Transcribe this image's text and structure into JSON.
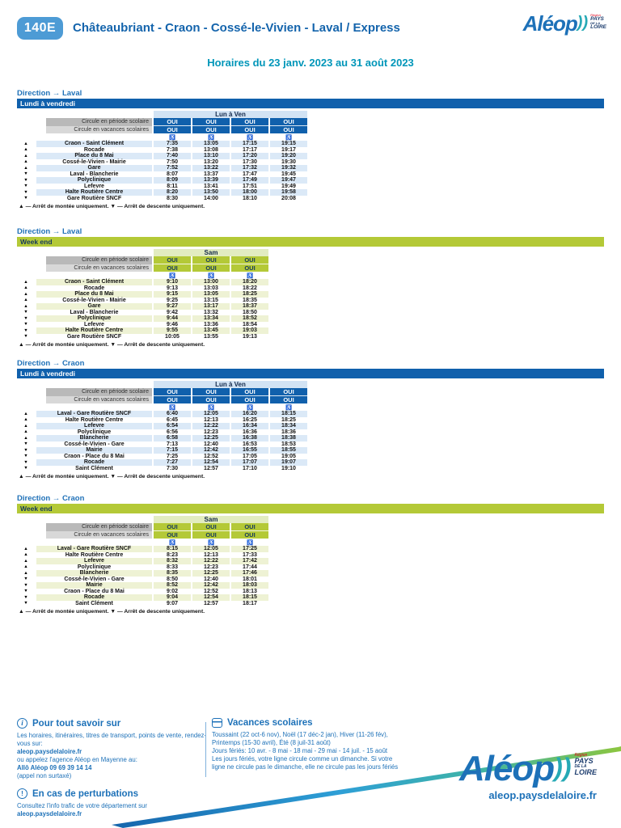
{
  "page": {
    "badge": "140E",
    "title": "Châteaubriant - Craon - Cossé-le-Vivien - Laval / Express",
    "subtitle": "Horaires du 23 janv. 2023 au 31 août 2023",
    "brand": {
      "name": "Aléop",
      "chevrons": "))",
      "region_small": "Région",
      "region_lines": [
        "PAYS",
        "DE LA",
        "LOIRE"
      ],
      "url": "aleop.paysdelaloire.fr"
    },
    "colors": {
      "dark_blue": "#1060ac",
      "badge_blue": "#4d9bd5",
      "teal": "#0096b9",
      "green": "#b4c937",
      "link_blue": "#1d71b8"
    }
  },
  "table_labels": {
    "periode": "Circule en période scolaire",
    "vacances": "Circule en vacances scolaires",
    "wheelchair_icon": "♿",
    "footnote": "▲ — Arrêt de montée uniquement. ▼ — Arrêt de descente uniquement."
  },
  "tables": [
    {
      "direction": "Direction → Laval",
      "day_band": "Lundi à vendredi",
      "theme": "blue",
      "day_header": "Lun à Ven",
      "periode": [
        "OUI",
        "OUI",
        "OUI",
        "OUI"
      ],
      "vacances": [
        "OUI",
        "OUI",
        "OUI",
        "OUI"
      ],
      "stops": [
        {
          "marker": "▲",
          "name": "Craon - Saint Clément",
          "times": [
            "7:35",
            "13:05",
            "17:15",
            "19:15"
          ]
        },
        {
          "marker": "▲",
          "name": "Rocade",
          "times": [
            "7:38",
            "13:08",
            "17:17",
            "19:17"
          ]
        },
        {
          "marker": "▲",
          "name": "Place du 8 Mai",
          "times": [
            "7:40",
            "13:10",
            "17:20",
            "19:20"
          ]
        },
        {
          "marker": "▲",
          "name": "Cossé-le-Vivien - Mairie",
          "times": [
            "7:50",
            "13:20",
            "17:30",
            "19:30"
          ]
        },
        {
          "marker": "▲",
          "name": "Gare",
          "times": [
            "7:52",
            "13:22",
            "17:32",
            "19:32"
          ]
        },
        {
          "marker": "▼",
          "name": "Laval - Blancherie",
          "times": [
            "8:07",
            "13:37",
            "17:47",
            "19:45"
          ]
        },
        {
          "marker": "▼",
          "name": "Polyclinique",
          "times": [
            "8:09",
            "13:39",
            "17:49",
            "19:47"
          ]
        },
        {
          "marker": "▼",
          "name": "Lefevre",
          "times": [
            "8:11",
            "13:41",
            "17:51",
            "19:49"
          ]
        },
        {
          "marker": "▼",
          "name": "Halte Routière Centre",
          "times": [
            "8:20",
            "13:50",
            "18:00",
            "19:58"
          ]
        },
        {
          "marker": "▼",
          "name": "Gare Routière SNCF",
          "times": [
            "8:30",
            "14:00",
            "18:10",
            "20:08"
          ]
        }
      ]
    },
    {
      "direction": "Direction → Laval",
      "day_band": "Week end",
      "theme": "green",
      "day_header": "Sam",
      "periode": [
        "OUI",
        "OUI",
        "OUI"
      ],
      "vacances": [
        "OUI",
        "OUI",
        "OUI"
      ],
      "stops": [
        {
          "marker": "▲",
          "name": "Craon - Saint Clément",
          "times": [
            "9:10",
            "13:00",
            "18:20"
          ]
        },
        {
          "marker": "▲",
          "name": "Rocade",
          "times": [
            "9:13",
            "13:03",
            "18:22"
          ]
        },
        {
          "marker": "▲",
          "name": "Place du 8 Mai",
          "times": [
            "9:15",
            "13:05",
            "18:25"
          ]
        },
        {
          "marker": "▲",
          "name": "Cossé-le-Vivien - Mairie",
          "times": [
            "9:25",
            "13:15",
            "18:35"
          ]
        },
        {
          "marker": "▲",
          "name": "Gare",
          "times": [
            "9:27",
            "13:17",
            "18:37"
          ]
        },
        {
          "marker": "▼",
          "name": "Laval - Blancherie",
          "times": [
            "9:42",
            "13:32",
            "18:50"
          ]
        },
        {
          "marker": "▼",
          "name": "Polyclinique",
          "times": [
            "9:44",
            "13:34",
            "18:52"
          ]
        },
        {
          "marker": "▼",
          "name": "Lefevre",
          "times": [
            "9:46",
            "13:36",
            "18:54"
          ]
        },
        {
          "marker": "▼",
          "name": "Halte Routière Centre",
          "times": [
            "9:55",
            "13:45",
            "19:03"
          ]
        },
        {
          "marker": "▼",
          "name": "Gare Routière SNCF",
          "times": [
            "10:05",
            "13:55",
            "19:13"
          ]
        }
      ]
    },
    {
      "direction": "Direction → Craon",
      "day_band": "Lundi à vendredi",
      "theme": "blue",
      "day_header": "Lun à Ven",
      "periode": [
        "OUI",
        "OUI",
        "OUI",
        "OUI"
      ],
      "vacances": [
        "OUI",
        "OUI",
        "OUI",
        "OUI"
      ],
      "stops": [
        {
          "marker": "▲",
          "name": "Laval - Gare Routière SNCF",
          "times": [
            "6:40",
            "12:05",
            "16:20",
            "18:15"
          ]
        },
        {
          "marker": "▲",
          "name": "Halte Routière Centre",
          "times": [
            "6:45",
            "12:13",
            "16:25",
            "18:25"
          ]
        },
        {
          "marker": "▲",
          "name": "Lefevre",
          "times": [
            "6:54",
            "12:22",
            "16:34",
            "18:34"
          ]
        },
        {
          "marker": "▲",
          "name": "Polyclinique",
          "times": [
            "6:56",
            "12:23",
            "16:36",
            "18:36"
          ]
        },
        {
          "marker": "▲",
          "name": "Blancherie",
          "times": [
            "6:58",
            "12:25",
            "16:38",
            "18:38"
          ]
        },
        {
          "marker": "▼",
          "name": "Cossé-le-Vivien - Gare",
          "times": [
            "7:13",
            "12:40",
            "16:53",
            "18:53"
          ]
        },
        {
          "marker": "▼",
          "name": "Mairie",
          "times": [
            "7:15",
            "12:42",
            "16:55",
            "18:55"
          ]
        },
        {
          "marker": "▼",
          "name": "Craon - Place du 8 Mai",
          "times": [
            "7:25",
            "12:52",
            "17:05",
            "19:05"
          ]
        },
        {
          "marker": "▼",
          "name": "Rocade",
          "times": [
            "7:27",
            "12:54",
            "17:07",
            "19:07"
          ]
        },
        {
          "marker": "▼",
          "name": "Saint Clément",
          "times": [
            "7:30",
            "12:57",
            "17:10",
            "19:10"
          ]
        }
      ]
    },
    {
      "direction": "Direction → Craon",
      "day_band": "Week end",
      "theme": "green",
      "day_header": "Sam",
      "periode": [
        "OUI",
        "OUI",
        "OUI"
      ],
      "vacances": [
        "OUI",
        "OUI",
        "OUI"
      ],
      "stops": [
        {
          "marker": "▲",
          "name": "Laval - Gare Routière SNCF",
          "times": [
            "8:15",
            "12:05",
            "17:25"
          ]
        },
        {
          "marker": "▲",
          "name": "Halte Routière Centre",
          "times": [
            "8:23",
            "12:13",
            "17:33"
          ]
        },
        {
          "marker": "▲",
          "name": "Lefevre",
          "times": [
            "8:32",
            "12:22",
            "17:42"
          ]
        },
        {
          "marker": "▲",
          "name": "Polyclinique",
          "times": [
            "8:33",
            "12:23",
            "17:44"
          ]
        },
        {
          "marker": "▲",
          "name": "Blancherie",
          "times": [
            "8:35",
            "12:25",
            "17:46"
          ]
        },
        {
          "marker": "▼",
          "name": "Cossé-le-Vivien - Gare",
          "times": [
            "8:50",
            "12:40",
            "18:01"
          ]
        },
        {
          "marker": "▼",
          "name": "Mairie",
          "times": [
            "8:52",
            "12:42",
            "18:03"
          ]
        },
        {
          "marker": "▼",
          "name": "Craon - Place du 8 Mai",
          "times": [
            "9:02",
            "12:52",
            "18:13"
          ]
        },
        {
          "marker": "▼",
          "name": "Rocade",
          "times": [
            "9:04",
            "12:54",
            "18:15"
          ]
        },
        {
          "marker": "▼",
          "name": "Saint Clément",
          "times": [
            "9:07",
            "12:57",
            "18:17"
          ]
        }
      ]
    }
  ],
  "footer": {
    "info": {
      "title": "Pour tout savoir sur",
      "line1": "Les horaires, itinéraires, titres de transport, points de vente, rendez-",
      "line2": "vous sur:",
      "link1": "aleop.paysdelaloire.fr",
      "line3": "ou appelez l'agence Aléop en Mayenne au:",
      "phone": "Allô Aléop 09 69 39 14 14",
      "line4": "(appel non surtaxé)"
    },
    "perturbations": {
      "title": "En cas de perturbations",
      "line1": "Consultez l'info trafic de votre département sur",
      "link1": "aleop.paysdelaloire.fr"
    },
    "vacances": {
      "title": "Vacances scolaires",
      "line1": "Toussaint (22 oct-6 nov), Noël (17 déc-2 jan), Hiver (11-26 fév),",
      "line2": "Printemps (15-30 avril), Été (8 juil-31 août)",
      "line3": "Jours fériés: 10 avr. - 8 mai - 18 mai - 29 mai - 14 juil. - 15 août",
      "line4": "Les jours fériés, votre ligne circule comme un dimanche. Si votre",
      "line5": "ligne ne circule pas le dimanche, elle ne circule pas les jours fériés"
    }
  }
}
